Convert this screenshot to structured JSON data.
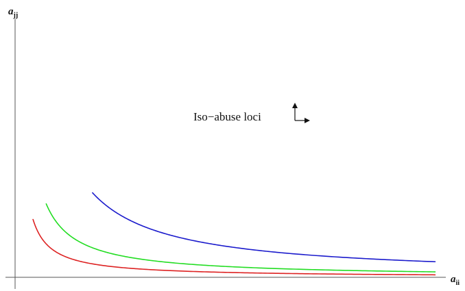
{
  "chart_data": {
    "type": "line",
    "title": "",
    "xlabel": {
      "base": "a",
      "subscript": "ii"
    },
    "ylabel": {
      "base": "a",
      "subscript": "jj"
    },
    "xlim": [
      0,
      10
    ],
    "ylim": [
      0,
      10
    ],
    "grid": false,
    "ticks": false,
    "series": [
      {
        "color": "#dd2222",
        "k": 1.0,
        "x_start": 0.42,
        "x_end": 9.92
      },
      {
        "color": "#22dd22",
        "k": 2.2,
        "x_start": 0.73,
        "x_end": 9.92
      },
      {
        "color": "#1a1acc",
        "k": 6.3,
        "x_start": 1.82,
        "x_end": 9.92
      }
    ],
    "annotation": {
      "text": "Iso−abuse loci",
      "icon": "up-and-right-arrows-icon"
    }
  }
}
